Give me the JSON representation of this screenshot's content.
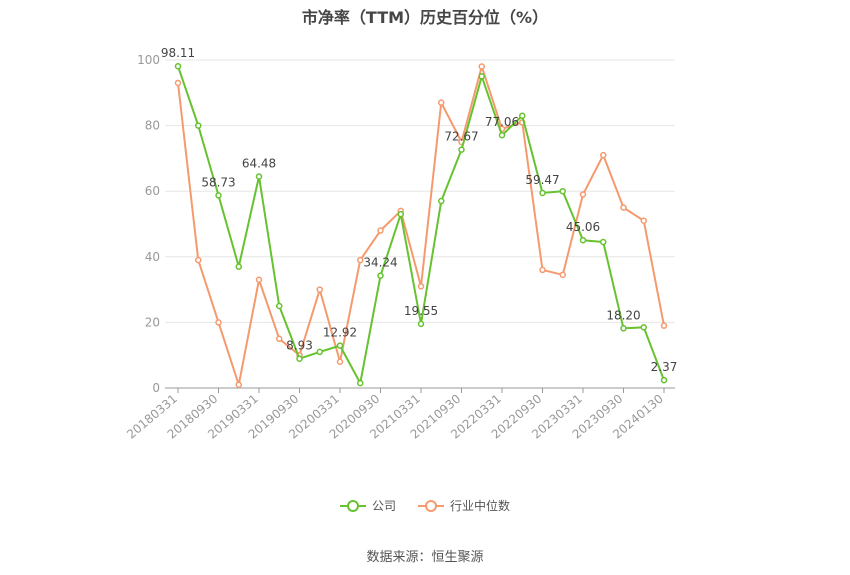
{
  "title": "市净率（TTM）历史百分位（%）",
  "source": "数据来源：恒生聚源",
  "colors": {
    "company": "#66c22e",
    "industry": "#f59a6e",
    "grid": "#e6e6e6",
    "axis": "#999999"
  },
  "chart_data": {
    "type": "line",
    "title": "市净率（TTM）历史百分位（%）",
    "ylim": [
      0,
      100
    ],
    "yticks": [
      0,
      20,
      40,
      60,
      80,
      100
    ],
    "xticklabels": [
      "20180331",
      "20180930",
      "20190331",
      "20190930",
      "20200331",
      "20200930",
      "20210331",
      "20210930",
      "20220331",
      "20220930",
      "20230331",
      "20230930",
      "20240130"
    ],
    "categories": [
      "20180331",
      "20180630",
      "20180930",
      "20181231",
      "20190331",
      "20190630",
      "20190930",
      "20191231",
      "20200331",
      "20200630",
      "20200930",
      "20201231",
      "20210331",
      "20210630",
      "20210930",
      "20211231",
      "20220331",
      "20220630",
      "20220930",
      "20221231",
      "20230331",
      "20230630",
      "20230930",
      "20231231",
      "20240130"
    ],
    "legend_position": "bottom",
    "series": [
      {
        "name": "公司",
        "color": "#66c22e",
        "values": [
          98.11,
          80,
          58.73,
          37,
          64.48,
          25,
          8.93,
          11,
          12.92,
          1.5,
          34.24,
          53,
          19.55,
          57,
          72.67,
          95,
          77.06,
          83,
          59.47,
          60,
          45.06,
          44.5,
          18.2,
          18.5,
          2.37
        ],
        "labels": {
          "0": "98.11",
          "2": "58.73",
          "4": "64.48",
          "6": "8.93",
          "8": "12.92",
          "10": "34.24",
          "12": "19.55",
          "14": "72.67",
          "16": "77.06",
          "18": "59.47",
          "20": "45.06",
          "22": "18.20",
          "24": "2.37"
        }
      },
      {
        "name": "行业中位数",
        "color": "#f59a6e",
        "values": [
          93,
          39,
          20,
          1,
          33,
          15,
          10,
          30,
          8,
          39,
          48,
          54,
          31,
          87,
          75,
          98,
          79,
          81,
          36,
          34.5,
          59,
          71,
          55,
          51,
          19
        ]
      }
    ]
  }
}
